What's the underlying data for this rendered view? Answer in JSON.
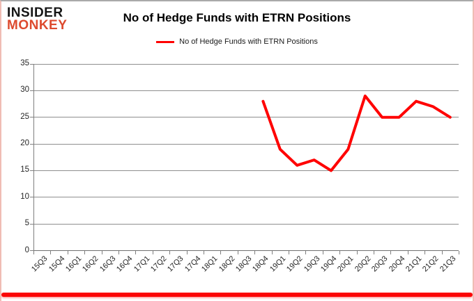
{
  "brand": {
    "line1": "INSIDER",
    "line2": "MONKEY",
    "accent_color": "#dd4a2e"
  },
  "header": {
    "title": "No of Hedge Funds with ETRN Positions"
  },
  "legend": {
    "label": "No of Hedge Funds with ETRN Positions",
    "swatch_color": "#ff0000"
  },
  "colors": {
    "series": "#ff0000",
    "grid": "#8e8e8e",
    "bottom_bar": "#fb0606"
  },
  "chart_data": {
    "type": "line",
    "title": "No of Hedge Funds with ETRN Positions",
    "categories": [
      "15Q3",
      "15Q4",
      "16Q1",
      "16Q2",
      "16Q3",
      "16Q4",
      "17Q1",
      "17Q2",
      "17Q3",
      "17Q4",
      "18Q1",
      "18Q2",
      "18Q3",
      "18Q4",
      "19Q1",
      "19Q2",
      "19Q3",
      "19Q4",
      "20Q1",
      "20Q2",
      "20Q3",
      "20Q4",
      "21Q1",
      "21Q2",
      "21Q3"
    ],
    "series": [
      {
        "name": "No of Hedge Funds with ETRN Positions",
        "color": "#ff0000",
        "values": [
          null,
          null,
          null,
          null,
          null,
          null,
          null,
          null,
          null,
          null,
          null,
          null,
          null,
          28,
          19,
          16,
          17,
          15,
          19,
          29,
          25,
          25,
          28,
          27,
          25
        ]
      }
    ],
    "xlabel": "",
    "ylabel": "",
    "ylim": [
      0,
      35
    ],
    "yticks": [
      0,
      5,
      10,
      15,
      20,
      25,
      30,
      35
    ],
    "grid": true,
    "legend_position": "top-center"
  }
}
